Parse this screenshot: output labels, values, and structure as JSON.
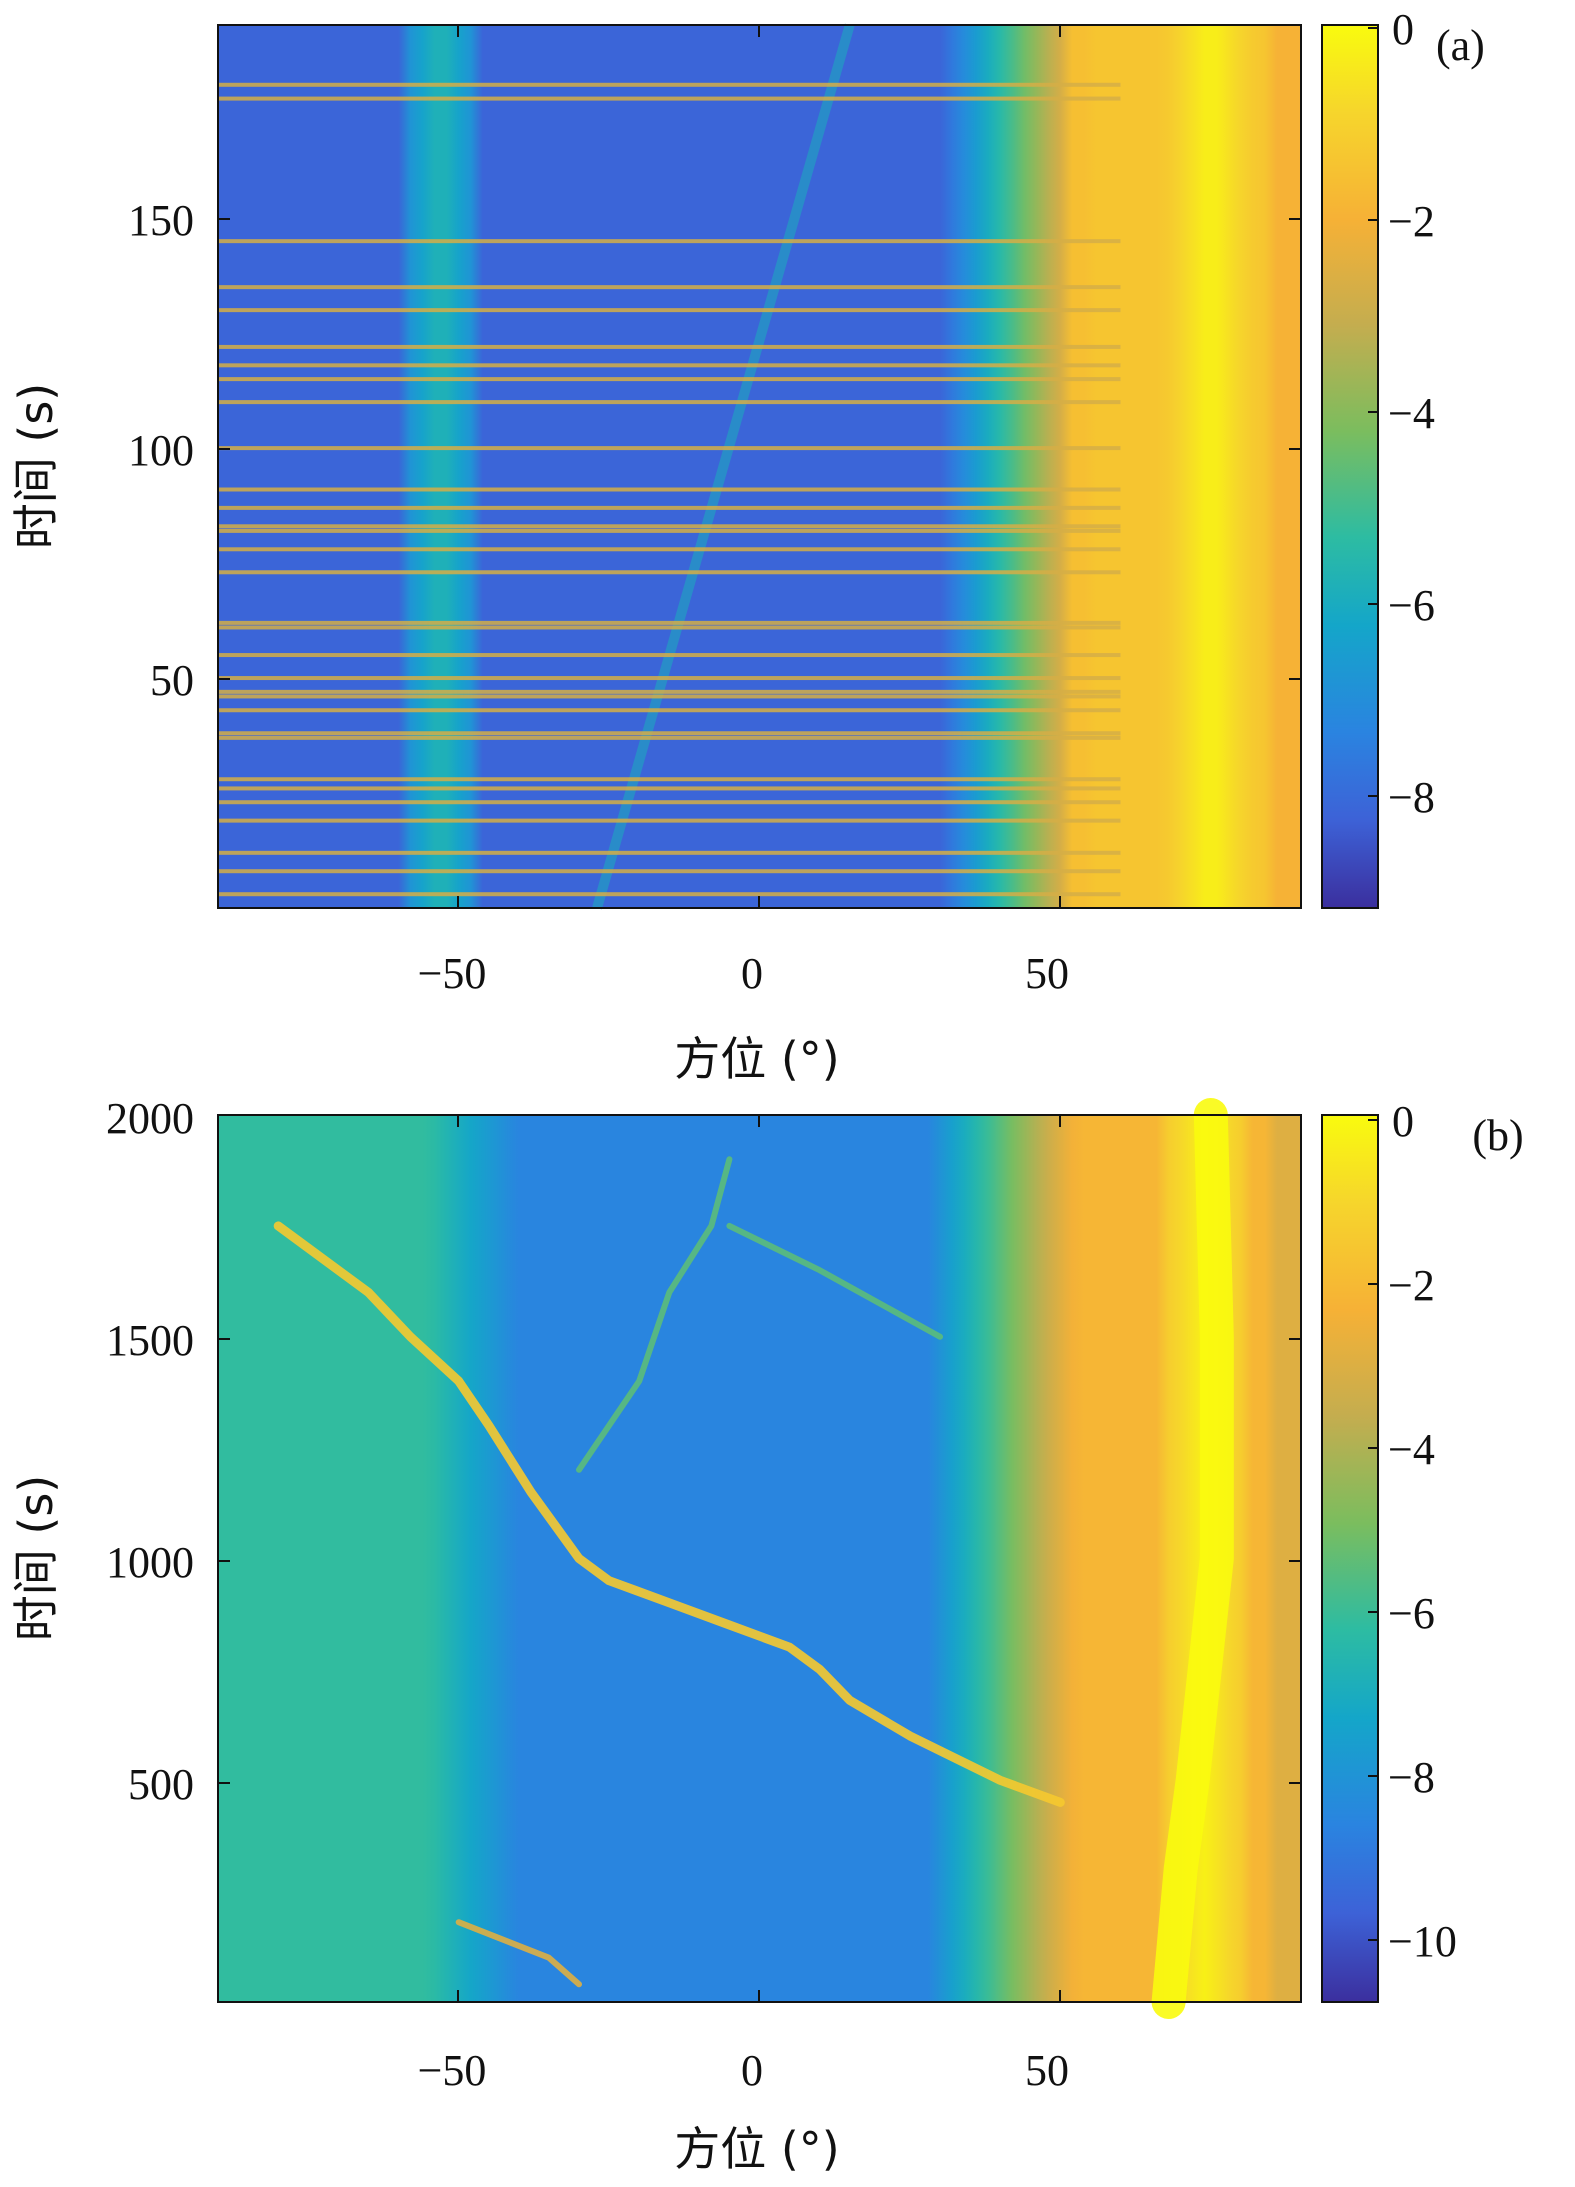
{
  "chart_data": [
    {
      "type": "heatmap",
      "panel_label": "(a)",
      "xlabel": "方位 (°)",
      "ylabel": "时间 (s)",
      "xlim": [
        -90,
        90
      ],
      "ylim": [
        0,
        192
      ],
      "xticks": [
        -50,
        0,
        50
      ],
      "yticks": [
        50,
        100,
        150
      ],
      "colorbar": {
        "range": [
          -9.2,
          0
        ],
        "ticks": [
          0,
          -2,
          -4,
          -6,
          -8
        ]
      },
      "ridges": [
        {
          "description": "strong main ridge",
          "azimuth": 75,
          "value": 0
        },
        {
          "description": "faint ridge",
          "azimuth": -53,
          "value": -5
        },
        {
          "description": "faint drifting ridge",
          "from": {
            "azimuth": -27,
            "time": 0
          },
          "to": {
            "azimuth": 15,
            "time": 192
          },
          "value": -6
        }
      ],
      "bright_rows_time": [
        3,
        8,
        12,
        19,
        23,
        26,
        28,
        37,
        38,
        43,
        46,
        47,
        50,
        55,
        61,
        62,
        73,
        78,
        82,
        83,
        87,
        91,
        100,
        110,
        115,
        118,
        122,
        130,
        135,
        145,
        176,
        179
      ]
    },
    {
      "type": "heatmap",
      "panel_label": "(b)",
      "xlabel": "方位 (°)",
      "ylabel": "时间 (s)",
      "xlim": [
        -90,
        90
      ],
      "ylim": [
        0,
        2000
      ],
      "xticks": [
        -50,
        0,
        50
      ],
      "yticks": [
        500,
        1000,
        1500,
        2000
      ],
      "colorbar": {
        "range": [
          -10.8,
          0
        ],
        "ticks": [
          0,
          -2,
          -4,
          -6,
          -8,
          -10
        ]
      },
      "ridges": [
        {
          "description": "strong main ridge",
          "path": [
            [
              0,
              68
            ],
            [
              300,
              70
            ],
            [
              500,
              72
            ],
            [
              1000,
              76
            ],
            [
              1500,
              76
            ],
            [
              2000,
              75
            ]
          ],
          "value": 0
        },
        {
          "description": "drifting target track",
          "path": [
            [
              1750,
              -80
            ],
            [
              1600,
              -65
            ],
            [
              1500,
              -58
            ],
            [
              1400,
              -50
            ],
            [
              1300,
              -45
            ],
            [
              1150,
              -38
            ],
            [
              1000,
              -30
            ],
            [
              950,
              -25
            ],
            [
              900,
              -15
            ],
            [
              850,
              -5
            ],
            [
              800,
              5
            ],
            [
              750,
              10
            ],
            [
              680,
              15
            ],
            [
              600,
              25
            ],
            [
              500,
              40
            ],
            [
              450,
              50
            ]
          ],
          "value": -1.5
        },
        {
          "description": "secondary track",
          "path": [
            [
              1900,
              -5
            ],
            [
              1750,
              -8
            ],
            [
              1600,
              -15
            ],
            [
              1400,
              -20
            ],
            [
              1200,
              -30
            ]
          ],
          "value": -5.5
        },
        {
          "description": "secondary track",
          "path": [
            [
              1750,
              -5
            ],
            [
              1650,
              10
            ],
            [
              1500,
              30
            ]
          ],
          "value": -5.5
        },
        {
          "description": "low track",
          "path": [
            [
              180,
              -50
            ],
            [
              100,
              -35
            ],
            [
              40,
              -30
            ]
          ],
          "value": -3
        }
      ]
    }
  ]
}
